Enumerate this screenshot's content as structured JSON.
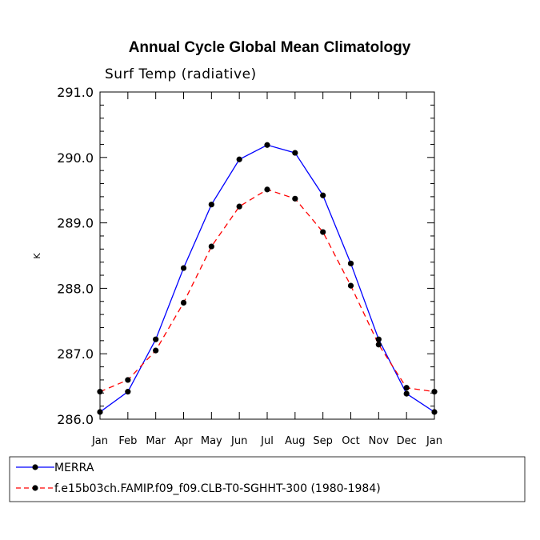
{
  "chart_data": {
    "type": "line",
    "title": "Annual Cycle Global Mean Climatology",
    "subtitle": "Surf Temp (radiative)",
    "xlabel": "",
    "ylabel": "K",
    "ylim": [
      286.0,
      291.0
    ],
    "yticks": [
      "286.0",
      "287.0",
      "288.0",
      "289.0",
      "290.0",
      "291.0"
    ],
    "categories": [
      "Jan",
      "Feb",
      "Mar",
      "Apr",
      "May",
      "Jun",
      "Jul",
      "Aug",
      "Sep",
      "Oct",
      "Nov",
      "Dec",
      "Jan"
    ],
    "grid": false,
    "legend_position": "bottom-left",
    "series": [
      {
        "name": "MERRA",
        "color": "#0000ff",
        "line_style": "solid",
        "marker": "filled-circle",
        "values": [
          286.11,
          286.42,
          287.22,
          288.31,
          289.28,
          289.97,
          290.19,
          290.07,
          289.42,
          288.38,
          287.22,
          286.39,
          286.11
        ]
      },
      {
        "name": "f.e15b03ch.FAMIP.f09_f09.CLB-T0-SGHHT-300 (1980-1984)",
        "color": "#ff0000",
        "line_style": "dashed",
        "marker": "filled-circle",
        "values": [
          286.42,
          286.6,
          287.05,
          287.78,
          288.64,
          289.25,
          289.51,
          289.37,
          288.86,
          288.04,
          287.14,
          286.48,
          286.42
        ]
      }
    ]
  }
}
